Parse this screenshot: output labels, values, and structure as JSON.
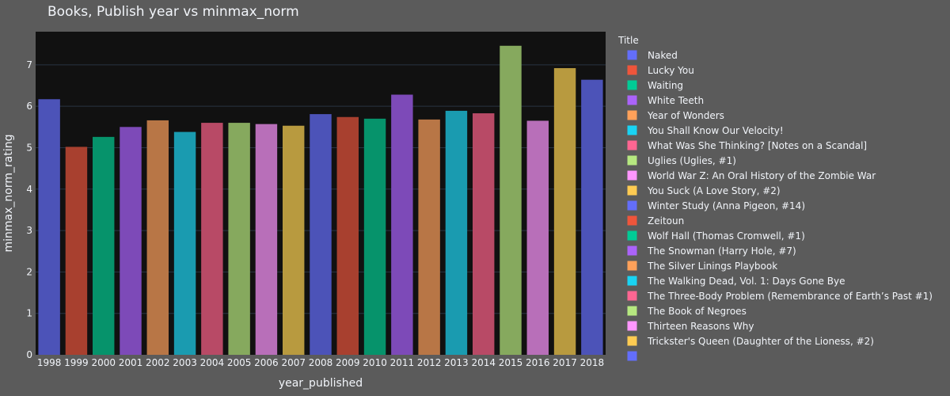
{
  "chart_data": {
    "type": "bar",
    "title": "Books, Publish year vs minmax_norm",
    "xlabel": "year_published",
    "ylabel": "minmax_norm_rating",
    "ylim": [
      0,
      7.8
    ],
    "yticks": [
      0,
      1,
      2,
      3,
      4,
      5,
      6,
      7
    ],
    "grid": true,
    "legend_title": "Title",
    "legend_position": "right",
    "categories": [
      "1998",
      "1999",
      "2000",
      "2001",
      "2002",
      "2003",
      "2004",
      "2005",
      "2006",
      "2007",
      "2008",
      "2009",
      "2010",
      "2011",
      "2012",
      "2013",
      "2014",
      "2015",
      "2016",
      "2017",
      "2018"
    ],
    "values": [
      6.17,
      5.02,
      5.26,
      5.5,
      5.66,
      5.38,
      5.6,
      5.6,
      5.57,
      5.53,
      5.81,
      5.74,
      5.7,
      6.28,
      5.68,
      5.89,
      5.83,
      7.46,
      5.65,
      6.92,
      6.64
    ],
    "bar_colors": [
      "#4c53b8",
      "#a8402f",
      "#06936b",
      "#7d4ab8",
      "#b87646",
      "#1a9bb0",
      "#b84a66",
      "#86a95e",
      "#b86fb9",
      "#b89a3f",
      "#4c53b8",
      "#a8402f",
      "#06936b",
      "#7d4ab8",
      "#b87646",
      "#1a9bb0",
      "#b84a66",
      "#86a95e",
      "#b86fb9",
      "#b89a3f",
      "#4c53b8"
    ],
    "series": [
      {
        "name": "Naked",
        "color": "#636efa"
      },
      {
        "name": "Lucky You",
        "color": "#ef553b"
      },
      {
        "name": "Waiting",
        "color": "#00cc96"
      },
      {
        "name": "White Teeth",
        "color": "#ab63fa"
      },
      {
        "name": "Year of Wonders",
        "color": "#ffa15a"
      },
      {
        "name": "You Shall Know Our Velocity!",
        "color": "#19d3f3"
      },
      {
        "name": "What Was She Thinking? [Notes on a Scandal]",
        "color": "#ff6692"
      },
      {
        "name": "Uglies (Uglies, #1)",
        "color": "#b6e880"
      },
      {
        "name": "World War Z: An Oral History of the Zombie War",
        "color": "#ff97ff"
      },
      {
        "name": "You Suck (A Love Story, #2)",
        "color": "#fecb52"
      },
      {
        "name": "Winter Study (Anna Pigeon, #14)",
        "color": "#636efa"
      },
      {
        "name": "Zeitoun",
        "color": "#ef553b"
      },
      {
        "name": "Wolf Hall (Thomas Cromwell, #1)",
        "color": "#00cc96"
      },
      {
        "name": "The Snowman (Harry Hole, #7)",
        "color": "#ab63fa"
      },
      {
        "name": "The Silver Linings Playbook",
        "color": "#ffa15a"
      },
      {
        "name": "The Walking Dead, Vol. 1: Days Gone Bye",
        "color": "#19d3f3"
      },
      {
        "name": "The Three-Body Problem (Remembrance of Earth’s Past #1)",
        "color": "#ff6692"
      },
      {
        "name": "The Book of Negroes",
        "color": "#b6e880"
      },
      {
        "name": "Thirteen Reasons Why",
        "color": "#ff97ff"
      },
      {
        "name": "Trickster's Queen (Daughter of the Lioness, #2)",
        "color": "#fecb52"
      },
      {
        "name": "",
        "color": "#636efa"
      }
    ]
  },
  "colors": {
    "page_bg": "#5b5b5b",
    "plot_bg": "#111111",
    "text": "#f2f5fa",
    "grid": "#283442"
  }
}
